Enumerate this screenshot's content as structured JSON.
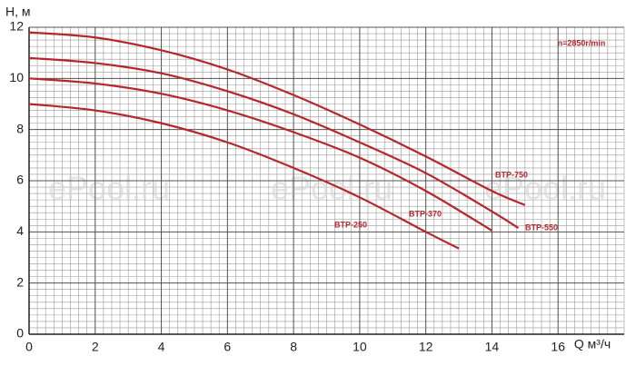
{
  "chart_data": {
    "type": "line",
    "y_label": "H, м",
    "x_label": "Q м³/ч",
    "annotation": "n=2850r/min",
    "watermarks": [
      "ePool.ru",
      "ePool.ru",
      "ePool.ru"
    ],
    "xlim": [
      0,
      18
    ],
    "ylim": [
      0,
      12
    ],
    "xticks": [
      0,
      2,
      4,
      6,
      8,
      10,
      12,
      14,
      16
    ],
    "yticks": [
      0,
      2,
      4,
      6,
      8,
      10,
      12
    ],
    "grid": true,
    "series": [
      {
        "name": "BTP-750",
        "color": "#b5272d",
        "x": [
          0,
          2,
          4,
          6,
          8,
          10,
          12,
          14,
          15
        ],
        "values": [
          11.8,
          11.6,
          11.1,
          10.35,
          9.35,
          8.2,
          6.95,
          5.6,
          5.05
        ]
      },
      {
        "name": "BTP-550",
        "color": "#b5272d",
        "x": [
          0,
          2,
          4,
          6,
          8,
          10,
          12,
          14,
          14.8
        ],
        "values": [
          10.8,
          10.6,
          10.2,
          9.5,
          8.6,
          7.5,
          6.3,
          4.8,
          4.15
        ]
      },
      {
        "name": "BTP-370",
        "color": "#b5272d",
        "x": [
          0,
          2,
          4,
          6,
          8,
          10,
          12,
          14
        ],
        "values": [
          10.0,
          9.8,
          9.4,
          8.75,
          7.9,
          6.9,
          5.6,
          4.05
        ]
      },
      {
        "name": "BTP-250",
        "color": "#b5272d",
        "x": [
          0,
          2,
          4,
          6,
          8,
          10,
          12,
          13
        ],
        "values": [
          9.0,
          8.75,
          8.25,
          7.5,
          6.5,
          5.35,
          4.0,
          3.35
        ]
      }
    ]
  }
}
